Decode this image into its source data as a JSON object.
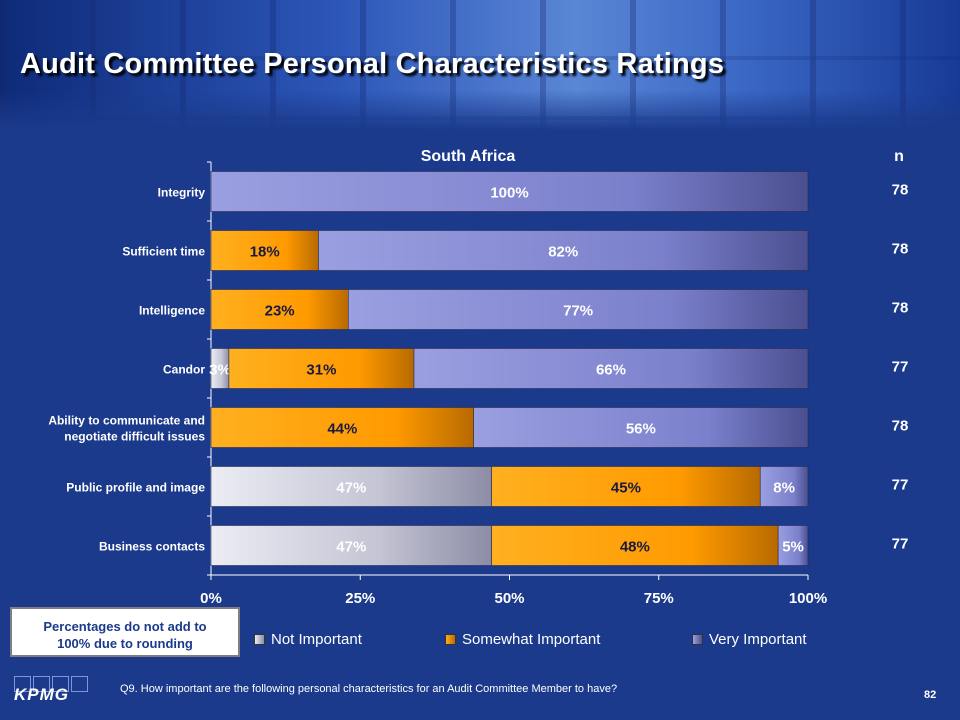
{
  "slide": {
    "title": "Audit Committee Personal Characteristics Ratings",
    "footnote_line1": "Percentages do not add to",
    "footnote_line2": "100% due to rounding",
    "question": "Q9. How important are the following personal characteristics for an Audit Committee Member to have?",
    "page_number": "82",
    "logo_text": "KPMG"
  },
  "colors": {
    "not_important": "#c8c8d6",
    "somewhat_important": "#ff9a00",
    "very_important": "#7b80cc",
    "background": "#1b3a8c"
  },
  "chart_data": {
    "type": "bar",
    "orientation": "horizontal",
    "stacked": true,
    "title": "South Africa",
    "n_header": "n",
    "categories": [
      "Integrity",
      "Sufficient time",
      "Intelligence",
      "Candor",
      "Ability to communicate and negotiate difficult issues",
      "Public profile and image",
      "Business contacts"
    ],
    "category_lines": [
      [
        "Integrity"
      ],
      [
        "Sufficient time"
      ],
      [
        "Intelligence"
      ],
      [
        "Candor"
      ],
      [
        "Ability to communicate and",
        "negotiate difficult issues"
      ],
      [
        "Public profile and image"
      ],
      [
        "Business contacts"
      ]
    ],
    "series": [
      {
        "name": "Not Important",
        "values": [
          0,
          0,
          0,
          3,
          0,
          47,
          47
        ],
        "color_key": "not_important"
      },
      {
        "name": "Somewhat Important",
        "values": [
          0,
          18,
          23,
          31,
          44,
          45,
          48
        ],
        "color_key": "somewhat_important"
      },
      {
        "name": "Very Important",
        "values": [
          100,
          82,
          77,
          66,
          56,
          8,
          5
        ],
        "color_key": "very_important"
      }
    ],
    "n_values": [
      "78",
      "78",
      "78",
      "77",
      "78",
      "77",
      "77"
    ],
    "x_ticks": [
      "0%",
      "25%",
      "50%",
      "75%",
      "100%"
    ],
    "xlim": [
      0,
      100
    ],
    "legend_position": "bottom"
  }
}
